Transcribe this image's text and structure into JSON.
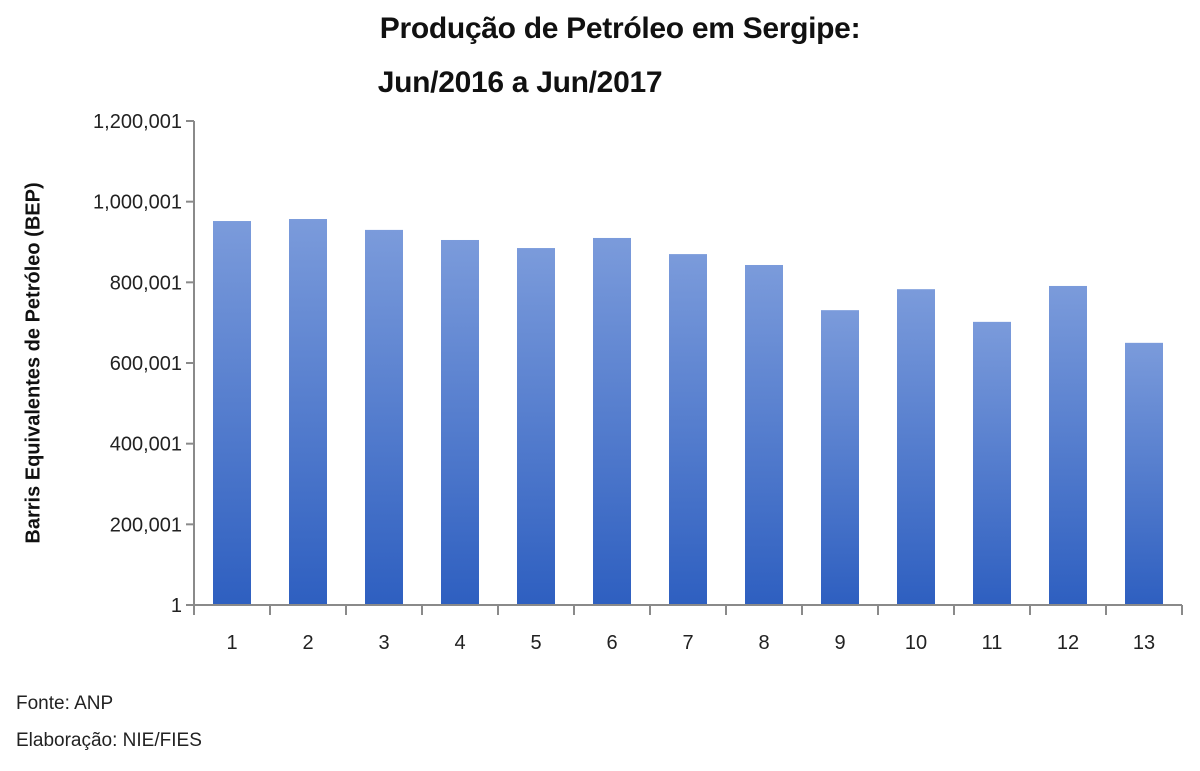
{
  "chart_data": {
    "type": "bar",
    "title": "Produção de Petróleo em Sergipe:",
    "subtitle": "Jun/2016 a Jun/2017",
    "xlabel": "",
    "ylabel": "Barris Equivalentes de Petróleo (BEP)",
    "categories": [
      "1",
      "2",
      "3",
      "4",
      "5",
      "6",
      "7",
      "8",
      "9",
      "10",
      "11",
      "12",
      "13"
    ],
    "values": [
      952000,
      957000,
      930000,
      905000,
      885000,
      910000,
      870000,
      843000,
      731000,
      783000,
      702000,
      791000,
      650000
    ],
    "ylim": [
      1,
      1200001
    ],
    "yticks": [
      1,
      200001,
      400001,
      600001,
      800001,
      1000001,
      1200001
    ],
    "ytick_labels": [
      "1",
      "200,001",
      "400,001",
      "600,001",
      "800,001",
      "1,000,001",
      "1,200,001"
    ],
    "grid": false,
    "legend": null,
    "bar_color_top": "#7b9bdb",
    "bar_color_bottom": "#2e5fc0"
  },
  "footer": {
    "source": "Fonte: ANP",
    "elaboration": "Elaboração: NIE/FIES"
  }
}
